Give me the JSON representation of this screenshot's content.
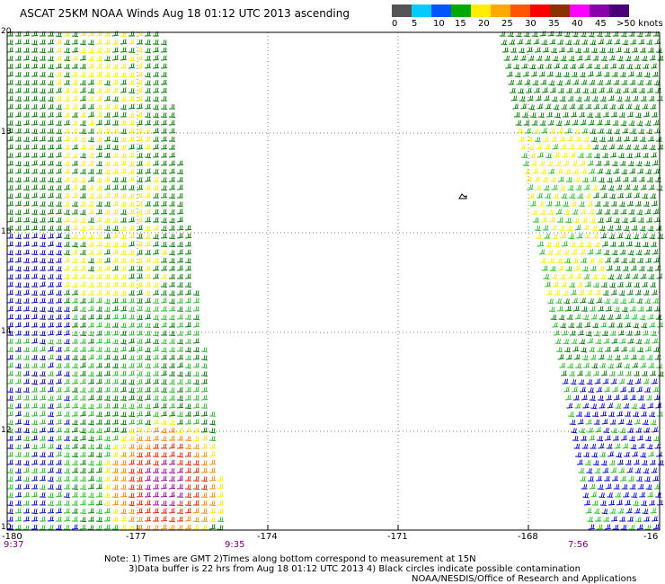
{
  "title": "ASCAT 25KM NOAA Winds Aug 18 01:12 UTC 2013 ascending",
  "legend": {
    "colors": [
      "#555555",
      "#00ccff",
      "#0055ff",
      "#00aa00",
      "#ffee00",
      "#ffaa00",
      "#ff5500",
      "#ff0000",
      "#8b3300",
      "#ff00ff",
      "#8800aa",
      "#4a0077"
    ],
    "labels": [
      "0",
      "5",
      "10",
      "15",
      "20",
      "25",
      "30",
      "35",
      "40",
      "45",
      ">50 knots"
    ]
  },
  "y_ticks": [
    "20",
    "18",
    "16",
    "14",
    "12",
    "10"
  ],
  "x_ticks": [
    "-180",
    "-177",
    "-174",
    "-171",
    "-168",
    "-16"
  ],
  "time_labels": [
    "9:37",
    "9:35",
    "7:56"
  ],
  "notes": {
    "line1": "Note: 1) Times are GMT 2)Times along bottom correspond to measurement at 15N",
    "line2": "3)Data buffer is 22 hrs from Aug 18 01:12 UTC 2013 4) Black circles indicate possible contamination",
    "line3": "NOAA/NESDIS/Office of Research and Applications"
  }
}
